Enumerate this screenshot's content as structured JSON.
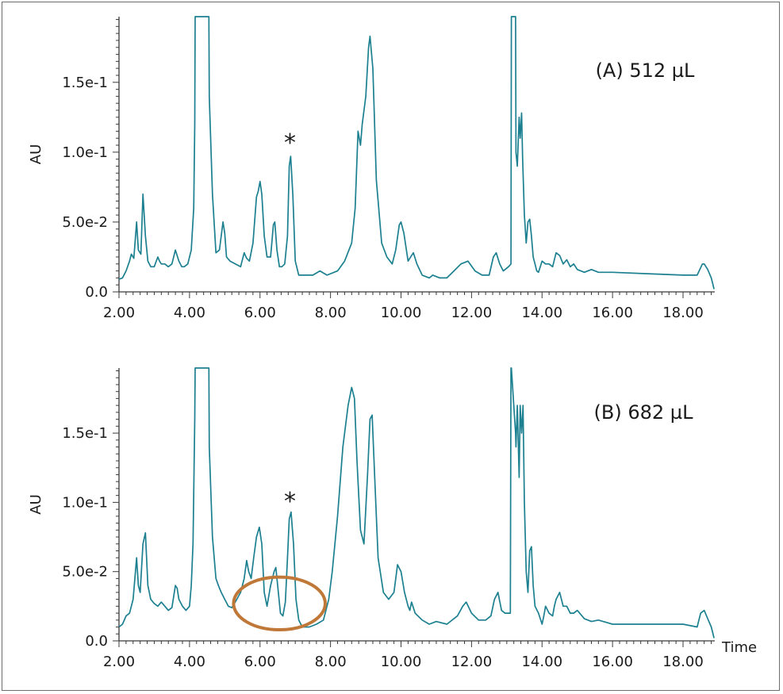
{
  "chart_data": [
    {
      "type": "line",
      "panel_label": "(A) 512 µL",
      "xlabel": "",
      "ylabel": "AU",
      "xlim": [
        2.0,
        18.9
      ],
      "ylim": [
        0,
        0.197
      ],
      "x_ticks": [
        2.0,
        4.0,
        6.0,
        8.0,
        10.0,
        12.0,
        14.0,
        16.0,
        18.0
      ],
      "x_tick_labels": [
        "2.00",
        "4.00",
        "6.00",
        "8.00",
        "10.00",
        "12.00",
        "14.00",
        "16.00",
        "18.00"
      ],
      "y_ticks": [
        0,
        0.05,
        0.1,
        0.15
      ],
      "y_tick_labels": [
        "0.0",
        "5.0e-2",
        "1.0e-1",
        "1.5e-1"
      ],
      "grid": false,
      "line_color": "#1c8090",
      "annotations": [
        {
          "text": "*",
          "x": 6.85,
          "y": 0.1
        }
      ],
      "series": [
        {
          "x": [
            2.0,
            2.1,
            2.2,
            2.3,
            2.35,
            2.42,
            2.5,
            2.55,
            2.62,
            2.68,
            2.75,
            2.82,
            2.9,
            3.0,
            3.1,
            3.15,
            3.2,
            3.3,
            3.4,
            3.5,
            3.6,
            3.7,
            3.78,
            3.85,
            3.95,
            4.05,
            4.12,
            4.15,
            4.16,
            4.55,
            4.56,
            4.65,
            4.75,
            4.85,
            4.95,
            5.0,
            5.05,
            5.15,
            5.3,
            5.45,
            5.55,
            5.62,
            5.7,
            5.8,
            5.9,
            5.95,
            6.0,
            6.05,
            6.12,
            6.2,
            6.3,
            6.38,
            6.42,
            6.48,
            6.55,
            6.62,
            6.7,
            6.78,
            6.83,
            6.87,
            6.93,
            7.0,
            7.1,
            7.25,
            7.5,
            7.7,
            7.9,
            8.0,
            8.2,
            8.4,
            8.6,
            8.7,
            8.78,
            8.85,
            8.9,
            9.0,
            9.08,
            9.12,
            9.2,
            9.3,
            9.45,
            9.6,
            9.75,
            9.85,
            9.95,
            10.0,
            10.08,
            10.2,
            10.3,
            10.35,
            10.45,
            10.6,
            10.8,
            10.9,
            11.1,
            11.3,
            11.5,
            11.7,
            11.9,
            12.1,
            12.3,
            12.5,
            12.62,
            12.7,
            12.8,
            12.9,
            13.05,
            13.12,
            13.13,
            13.25,
            13.26,
            13.3,
            13.35,
            13.38,
            13.42,
            13.45,
            13.5,
            13.55,
            13.6,
            13.65,
            13.7,
            13.75,
            13.8,
            13.85,
            13.9,
            14.0,
            14.1,
            14.2,
            14.3,
            14.4,
            14.5,
            14.6,
            14.7,
            14.8,
            14.9,
            15.0,
            15.2,
            15.4,
            15.6,
            16.0,
            17.0,
            18.0,
            18.4,
            18.55,
            18.6,
            18.7,
            18.8,
            18.88
          ],
          "y": [
            0.009,
            0.01,
            0.015,
            0.022,
            0.027,
            0.024,
            0.05,
            0.03,
            0.027,
            0.07,
            0.04,
            0.022,
            0.018,
            0.018,
            0.025,
            0.022,
            0.02,
            0.02,
            0.018,
            0.02,
            0.03,
            0.022,
            0.018,
            0.018,
            0.02,
            0.03,
            0.06,
            0.12,
            0.197,
            0.197,
            0.14,
            0.07,
            0.028,
            0.03,
            0.05,
            0.042,
            0.025,
            0.022,
            0.02,
            0.018,
            0.028,
            0.024,
            0.022,
            0.035,
            0.068,
            0.072,
            0.079,
            0.07,
            0.04,
            0.025,
            0.025,
            0.048,
            0.05,
            0.03,
            0.018,
            0.018,
            0.02,
            0.04,
            0.09,
            0.097,
            0.07,
            0.022,
            0.012,
            0.012,
            0.012,
            0.015,
            0.012,
            0.013,
            0.015,
            0.022,
            0.035,
            0.06,
            0.115,
            0.105,
            0.12,
            0.14,
            0.175,
            0.183,
            0.16,
            0.08,
            0.035,
            0.025,
            0.02,
            0.03,
            0.048,
            0.05,
            0.042,
            0.022,
            0.026,
            0.028,
            0.02,
            0.012,
            0.01,
            0.012,
            0.01,
            0.01,
            0.015,
            0.02,
            0.022,
            0.015,
            0.012,
            0.012,
            0.025,
            0.028,
            0.02,
            0.015,
            0.018,
            0.02,
            0.197,
            0.197,
            0.1,
            0.09,
            0.125,
            0.11,
            0.128,
            0.095,
            0.055,
            0.035,
            0.05,
            0.052,
            0.04,
            0.025,
            0.02,
            0.015,
            0.014,
            0.022,
            0.02,
            0.02,
            0.018,
            0.028,
            0.026,
            0.02,
            0.023,
            0.018,
            0.02,
            0.016,
            0.014,
            0.016,
            0.014,
            0.014,
            0.013,
            0.012,
            0.012,
            0.02,
            0.02,
            0.016,
            0.01,
            0.002
          ]
        }
      ]
    },
    {
      "type": "line",
      "panel_label": "(B) 682 µL",
      "xlabel": "Time",
      "ylabel": "AU",
      "xlim": [
        2.0,
        18.9
      ],
      "ylim": [
        0,
        0.197
      ],
      "x_ticks": [
        2.0,
        4.0,
        6.0,
        8.0,
        10.0,
        12.0,
        14.0,
        16.0,
        18.0
      ],
      "x_tick_labels": [
        "2.00",
        "4.00",
        "6.00",
        "8.00",
        "10.00",
        "12.00",
        "14.00",
        "16.00",
        "18.00"
      ],
      "y_ticks": [
        0,
        0.05,
        0.1,
        0.15
      ],
      "y_tick_labels": [
        "0.0",
        "5.0e-2",
        "1.0e-1",
        "1.5e-1"
      ],
      "grid": false,
      "line_color": "#1c8090",
      "annotations": [
        {
          "text": "*",
          "x": 6.85,
          "y": 0.094
        },
        {
          "shape": "ellipse",
          "color": "#c07838",
          "cx": 6.55,
          "cy": 0.027,
          "rx": 1.3,
          "ry": 0.019
        }
      ],
      "series": [
        {
          "x": [
            2.0,
            2.1,
            2.2,
            2.3,
            2.4,
            2.45,
            2.5,
            2.55,
            2.6,
            2.68,
            2.75,
            2.82,
            2.9,
            3.0,
            3.1,
            3.2,
            3.3,
            3.4,
            3.5,
            3.6,
            3.65,
            3.7,
            3.8,
            3.9,
            4.0,
            4.05,
            4.1,
            4.15,
            4.16,
            4.55,
            4.56,
            4.65,
            4.75,
            4.82,
            4.9,
            5.0,
            5.1,
            5.2,
            5.3,
            5.45,
            5.55,
            5.62,
            5.68,
            5.75,
            5.82,
            5.9,
            5.98,
            6.05,
            6.12,
            6.2,
            6.3,
            6.4,
            6.45,
            6.5,
            6.58,
            6.65,
            6.72,
            6.78,
            6.83,
            6.88,
            6.95,
            7.02,
            7.1,
            7.2,
            7.4,
            7.6,
            7.8,
            7.95,
            8.05,
            8.2,
            8.35,
            8.5,
            8.6,
            8.68,
            8.75,
            8.85,
            8.95,
            9.05,
            9.12,
            9.18,
            9.25,
            9.35,
            9.5,
            9.65,
            9.8,
            9.9,
            10.0,
            10.1,
            10.2,
            10.25,
            10.3,
            10.4,
            10.6,
            10.8,
            11.0,
            11.3,
            11.6,
            11.75,
            11.85,
            12.0,
            12.2,
            12.4,
            12.55,
            12.65,
            12.75,
            12.85,
            12.95,
            13.1,
            13.12,
            13.13,
            13.25,
            13.26,
            13.3,
            13.35,
            13.38,
            13.42,
            13.46,
            13.5,
            13.55,
            13.6,
            13.65,
            13.7,
            13.75,
            13.8,
            13.9,
            14.0,
            14.05,
            14.1,
            14.2,
            14.3,
            14.35,
            14.4,
            14.5,
            14.6,
            14.7,
            14.8,
            14.9,
            15.0,
            15.2,
            15.4,
            15.6,
            16.0,
            17.0,
            18.0,
            18.4,
            18.5,
            18.6,
            18.7,
            18.8,
            18.88
          ],
          "y": [
            0.01,
            0.012,
            0.018,
            0.02,
            0.03,
            0.045,
            0.06,
            0.04,
            0.035,
            0.07,
            0.078,
            0.04,
            0.03,
            0.027,
            0.025,
            0.028,
            0.025,
            0.022,
            0.024,
            0.04,
            0.038,
            0.03,
            0.025,
            0.022,
            0.025,
            0.04,
            0.07,
            0.16,
            0.197,
            0.197,
            0.14,
            0.075,
            0.045,
            0.04,
            0.035,
            0.03,
            0.025,
            0.024,
            0.028,
            0.035,
            0.045,
            0.058,
            0.05,
            0.045,
            0.06,
            0.075,
            0.082,
            0.07,
            0.035,
            0.025,
            0.04,
            0.05,
            0.053,
            0.04,
            0.02,
            0.018,
            0.028,
            0.06,
            0.088,
            0.093,
            0.07,
            0.03,
            0.015,
            0.01,
            0.01,
            0.012,
            0.015,
            0.03,
            0.05,
            0.09,
            0.14,
            0.17,
            0.183,
            0.175,
            0.13,
            0.08,
            0.07,
            0.12,
            0.16,
            0.163,
            0.12,
            0.06,
            0.035,
            0.03,
            0.035,
            0.055,
            0.05,
            0.035,
            0.025,
            0.022,
            0.028,
            0.02,
            0.015,
            0.012,
            0.014,
            0.012,
            0.018,
            0.025,
            0.028,
            0.02,
            0.015,
            0.015,
            0.018,
            0.03,
            0.035,
            0.022,
            0.02,
            0.02,
            0.197,
            0.197,
            0.15,
            0.14,
            0.17,
            0.118,
            0.17,
            0.15,
            0.17,
            0.1,
            0.05,
            0.035,
            0.065,
            0.068,
            0.04,
            0.025,
            0.02,
            0.012,
            0.018,
            0.025,
            0.02,
            0.018,
            0.025,
            0.03,
            0.035,
            0.025,
            0.025,
            0.02,
            0.02,
            0.022,
            0.016,
            0.014,
            0.015,
            0.012,
            0.012,
            0.012,
            0.01,
            0.02,
            0.022,
            0.016,
            0.01,
            0.002
          ]
        }
      ]
    }
  ]
}
